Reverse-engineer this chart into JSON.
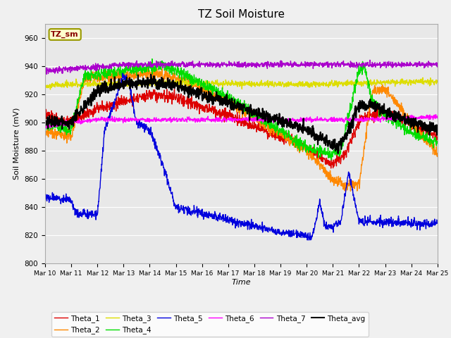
{
  "title": "TZ Soil Moisture",
  "xlabel": "Time",
  "ylabel": "Soil Moisture (mV)",
  "ylim": [
    800,
    970
  ],
  "xlim": [
    0,
    15
  ],
  "tick_labels": [
    "Mar 10",
    "Mar 11",
    "Mar 12",
    "Mar 13",
    "Mar 14",
    "Mar 15",
    "Mar 16",
    "Mar 17",
    "Mar 18",
    "Mar 19",
    "Mar 20",
    "Mar 21",
    "Mar 22",
    "Mar 23",
    "Mar 24",
    "Mar 25"
  ],
  "legend_label": "TZ_sm",
  "fig_facecolor": "#f0f0f0",
  "plot_bg": "#e8e8e8",
  "series_colors": {
    "Theta_1": "#dd0000",
    "Theta_2": "#ff8800",
    "Theta_3": "#dddd00",
    "Theta_4": "#00dd00",
    "Theta_5": "#0000dd",
    "Theta_6": "#ff00ff",
    "Theta_7": "#aa00cc",
    "Theta_avg": "#000000"
  }
}
